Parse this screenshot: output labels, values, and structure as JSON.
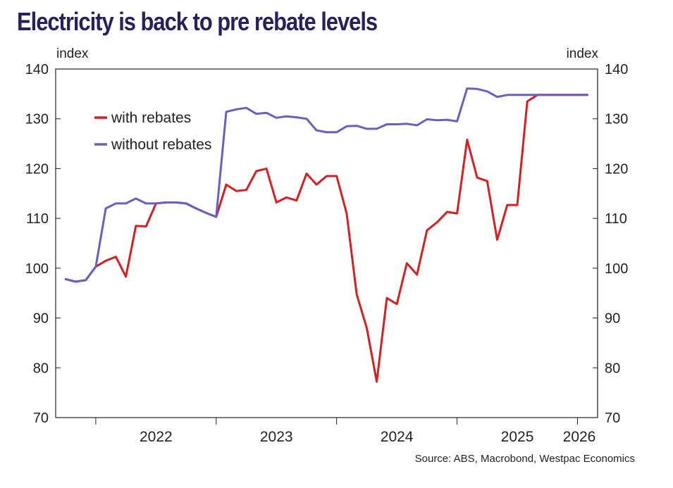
{
  "title": "Electricity is back to pre rebate levels",
  "source": "Source: ABS, Macrobond, Westpac Economics",
  "colors": {
    "with_rebates": "#d42020",
    "without_rebates": "#6a5fc1",
    "title": "#2a1f5c"
  },
  "chart_data": {
    "type": "line",
    "title": "Electricity is back to pre rebate levels",
    "ylabel_left": "index",
    "ylabel_right": "index",
    "ylim": [
      70,
      140
    ],
    "yticks": [
      70,
      80,
      90,
      100,
      110,
      120,
      130,
      140
    ],
    "xlim": [
      2021.667,
      2026.167
    ],
    "xtick_labels": [
      "2022",
      "2023",
      "2024",
      "2025",
      "2026"
    ],
    "legend": {
      "position": "upper-left",
      "entries": [
        "with rebates",
        "without rebates"
      ]
    },
    "series": [
      {
        "name": "with rebates",
        "x": [
          2021.75,
          2021.833,
          2021.917,
          2022.0,
          2022.083,
          2022.167,
          2022.25,
          2022.333,
          2022.417,
          2022.5,
          2022.583,
          2022.667,
          2022.75,
          2022.833,
          2022.917,
          2023.0,
          2023.083,
          2023.167,
          2023.25,
          2023.333,
          2023.417,
          2023.5,
          2023.583,
          2023.667,
          2023.75,
          2023.833,
          2023.917,
          2024.0,
          2024.083,
          2024.167,
          2024.25,
          2024.333,
          2024.417,
          2024.5,
          2024.583,
          2024.667,
          2024.75,
          2024.833,
          2024.917,
          2025.0,
          2025.083,
          2025.167,
          2025.25,
          2025.333,
          2025.417,
          2025.5,
          2025.583,
          2025.667,
          2025.75,
          2025.833,
          2025.917,
          2026.0,
          2026.083
        ],
        "values": [
          97.8,
          97.3,
          97.6,
          100.3,
          101.5,
          102.3,
          98.3,
          108.5,
          108.4,
          113.0,
          113.2,
          113.2,
          113.0,
          112.0,
          111.1,
          110.3,
          116.8,
          115.5,
          115.7,
          119.5,
          120.0,
          113.2,
          114.2,
          113.6,
          119.0,
          116.8,
          118.5,
          118.5,
          111.0,
          94.7,
          88.0,
          77.2,
          94.0,
          92.8,
          101.0,
          98.7,
          107.6,
          109.2,
          111.3,
          111.0,
          125.8,
          118.2,
          117.5,
          105.7,
          112.7,
          112.7,
          133.5,
          134.8,
          134.8,
          134.8,
          134.8,
          134.8,
          134.8
        ]
      },
      {
        "name": "without rebates",
        "x": [
          2021.75,
          2021.833,
          2021.917,
          2022.0,
          2022.083,
          2022.167,
          2022.25,
          2022.333,
          2022.417,
          2022.5,
          2022.583,
          2022.667,
          2022.75,
          2022.833,
          2022.917,
          2023.0,
          2023.083,
          2023.167,
          2023.25,
          2023.333,
          2023.417,
          2023.5,
          2023.583,
          2023.667,
          2023.75,
          2023.833,
          2023.917,
          2024.0,
          2024.083,
          2024.167,
          2024.25,
          2024.333,
          2024.417,
          2024.5,
          2024.583,
          2024.667,
          2024.75,
          2024.833,
          2024.917,
          2025.0,
          2025.083,
          2025.167,
          2025.25,
          2025.333,
          2025.417,
          2025.5,
          2025.583,
          2025.667,
          2025.75,
          2025.833,
          2025.917,
          2026.0,
          2026.083
        ],
        "values": [
          97.8,
          97.3,
          97.6,
          100.3,
          112.0,
          113.0,
          113.0,
          114.0,
          113.0,
          113.0,
          113.2,
          113.2,
          113.0,
          112.0,
          111.1,
          110.3,
          131.4,
          131.9,
          132.2,
          131.0,
          131.2,
          130.2,
          130.5,
          130.3,
          130.0,
          127.7,
          127.3,
          127.3,
          128.5,
          128.6,
          128.0,
          128.0,
          128.9,
          128.9,
          129.0,
          128.7,
          129.9,
          129.7,
          129.8,
          129.5,
          136.1,
          136.0,
          135.5,
          134.4,
          134.8,
          134.8,
          134.8,
          134.8,
          134.8,
          134.8,
          134.8,
          134.8,
          134.8
        ]
      }
    ]
  }
}
